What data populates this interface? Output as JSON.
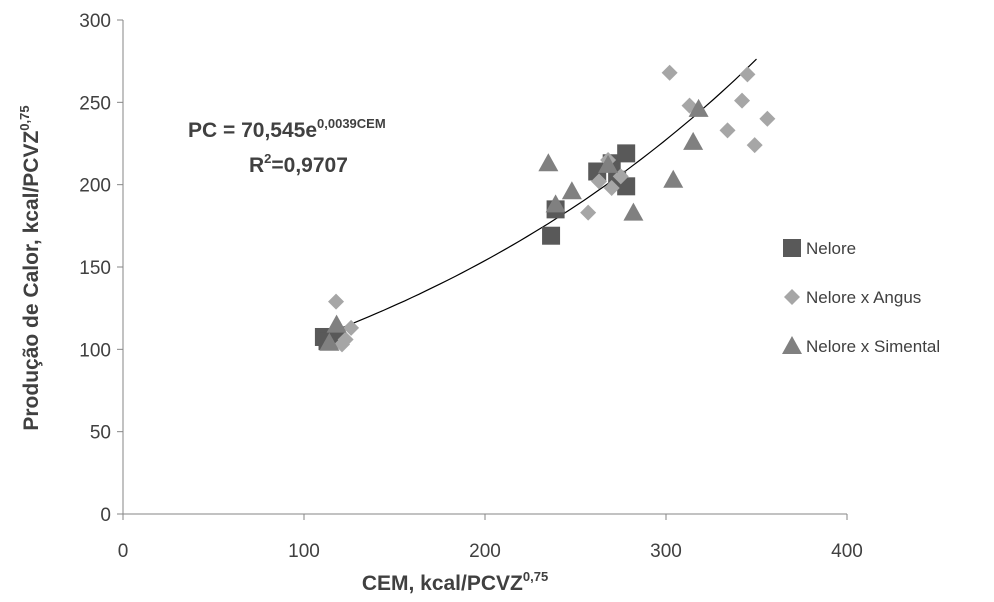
{
  "chart_data": {
    "type": "scatter",
    "x_label": "CEM, kcal/PCVZ",
    "x_label_sup": "0,75",
    "y_label": "Produção de Calor, kcal/PCVZ",
    "y_label_sup": "0,75",
    "xlim": [
      0,
      400
    ],
    "xticks": [
      0,
      100,
      200,
      300,
      400
    ],
    "ylim": [
      0,
      300
    ],
    "yticks": [
      0,
      50,
      100,
      150,
      200,
      250,
      300
    ],
    "grid": false,
    "legend": "right",
    "series": [
      {
        "name": "Nelore",
        "marker": "square",
        "color": "#595959",
        "x": [
          111,
          113,
          118,
          236.5,
          239,
          262,
          270,
          273,
          278,
          278
        ],
        "values": [
          107.5,
          105,
          107,
          169,
          185,
          208,
          213,
          203,
          219,
          199
        ]
      },
      {
        "name": "Nelore x Angus",
        "marker": "diamond",
        "color": "#a6a6a6",
        "x": [
          117.7,
          121,
          123,
          126,
          257,
          263,
          268,
          270,
          275,
          302,
          313,
          334,
          342,
          345,
          349,
          356
        ],
        "values": [
          129,
          103,
          106,
          113,
          183,
          202,
          215,
          198,
          205,
          268,
          248,
          233,
          251,
          267,
          224,
          240
        ]
      },
      {
        "name": "Nelore x Simental",
        "marker": "triangle",
        "color": "#808080",
        "x": [
          114,
          118,
          235,
          239,
          248,
          268,
          282,
          304,
          315,
          318
        ],
        "values": [
          104,
          115,
          213,
          188,
          196,
          212,
          183,
          203,
          226,
          246
        ]
      }
    ],
    "trendline": {
      "a": 70.545,
      "b": 0.0039,
      "x_range": [
        112,
        350
      ],
      "color": "#000000",
      "equation": "PC = 70,545e",
      "equation_sup": "0,0039CEM",
      "r2": "R",
      "r2_sup": "2",
      "r2_value": "=0,9707"
    }
  }
}
